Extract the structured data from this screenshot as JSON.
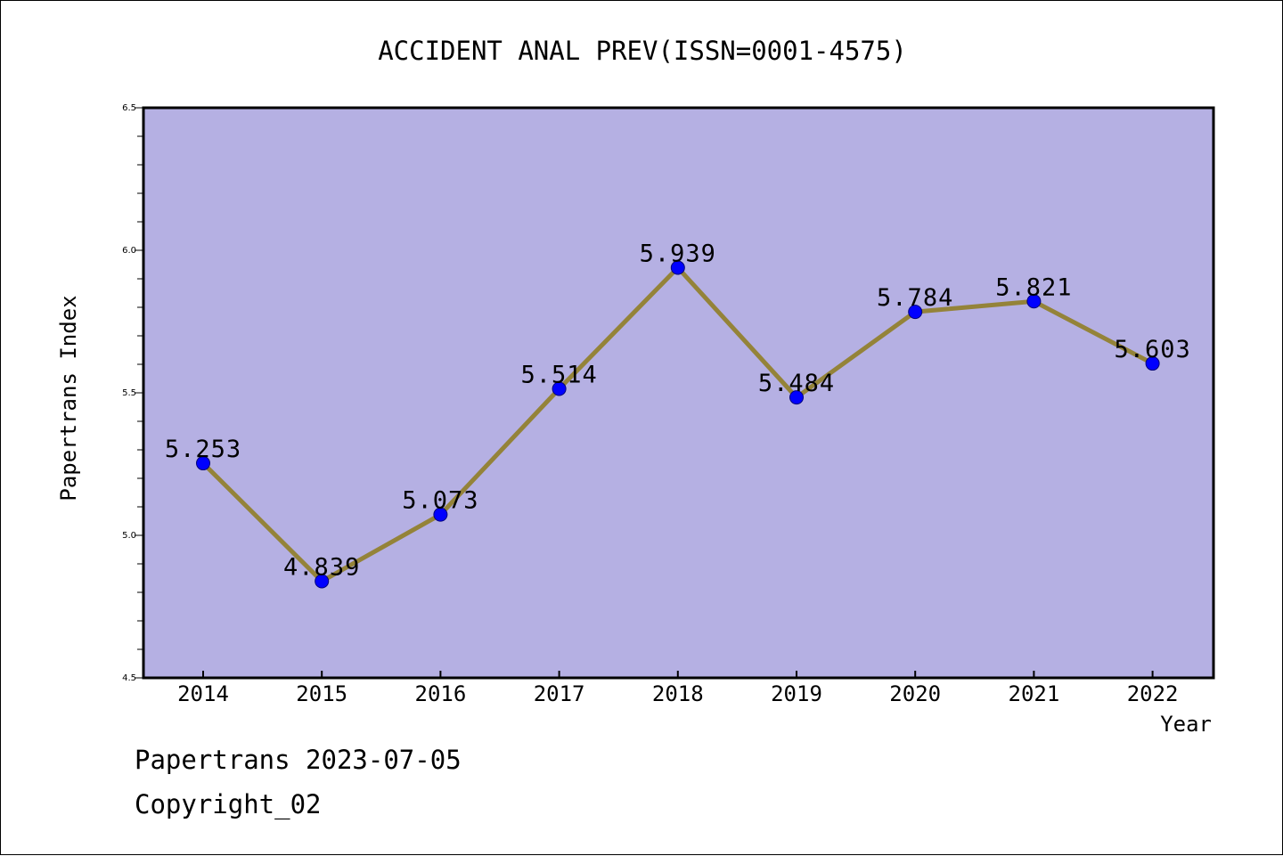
{
  "chart_data": {
    "type": "line",
    "title": "ACCIDENT ANAL PREV(ISSN=0001-4575)",
    "xlabel": "Year",
    "ylabel": "Papertrans Index",
    "x": [
      "2014",
      "2015",
      "2016",
      "2017",
      "2018",
      "2019",
      "2020",
      "2021",
      "2022"
    ],
    "series": [
      {
        "values": [
          5.253,
          4.839,
          5.073,
          5.514,
          5.939,
          5.484,
          5.784,
          5.821,
          5.603
        ],
        "labels": [
          "5.253",
          "4.839",
          "5.073",
          "5.514",
          "5.939",
          "5.484",
          "5.784",
          "5.821",
          "5.603"
        ]
      }
    ],
    "ylim": [
      4.5,
      6.5
    ],
    "yticks": [
      "4.5",
      "5.0",
      "5.5",
      "6.0",
      "6.5"
    ],
    "grid": false,
    "colors": {
      "plot_background": "#b5b0e3",
      "line": "#948339",
      "marker": "#0000ff"
    }
  },
  "footer": {
    "line1": "Papertrans 2023-07-05",
    "line2": "Copyright_02"
  }
}
